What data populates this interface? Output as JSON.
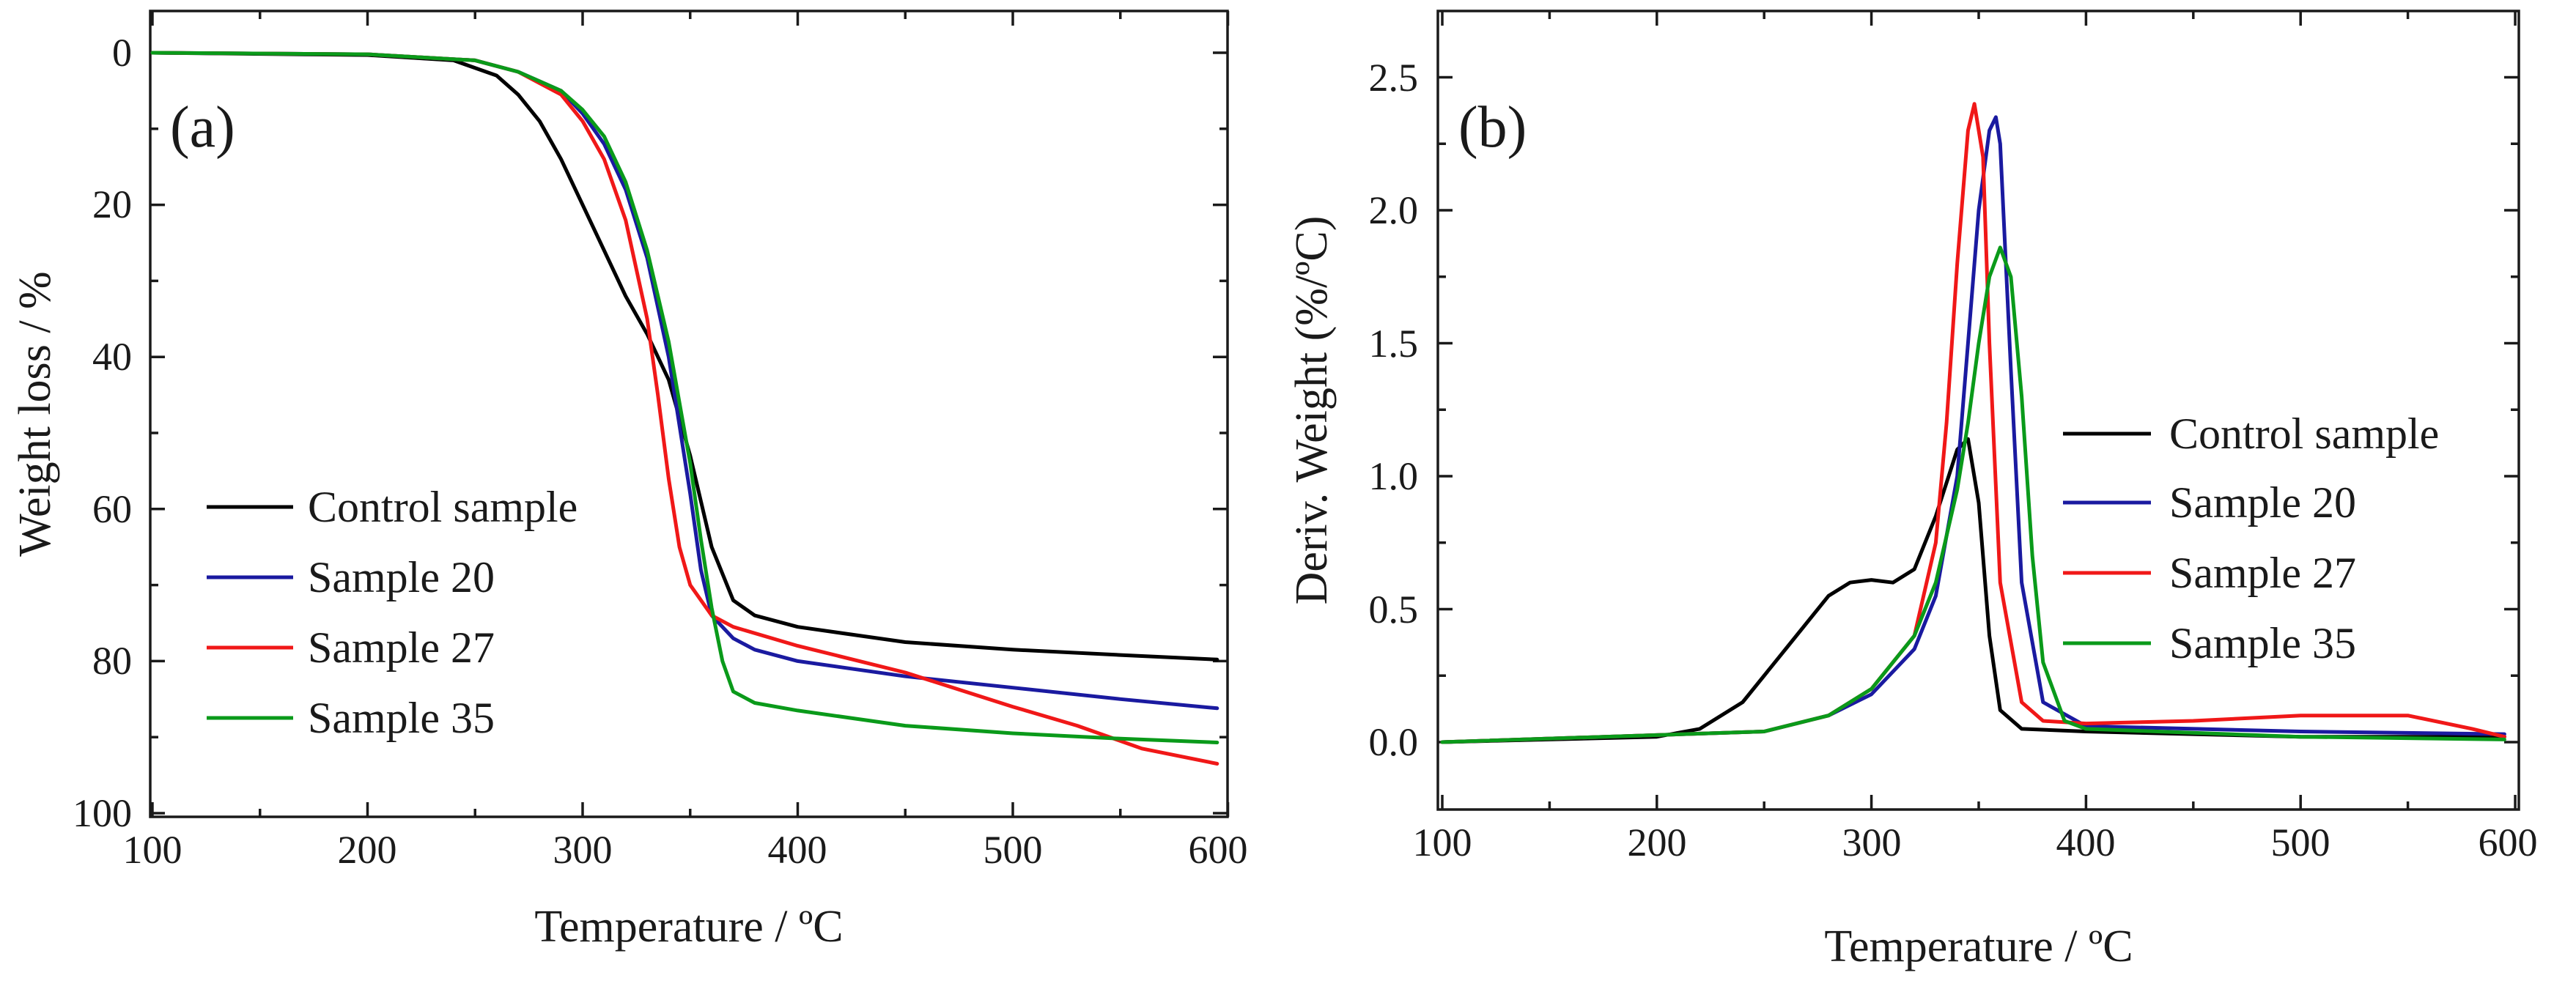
{
  "colors": {
    "control": "#000000",
    "sample20": "#1a1aa0",
    "sample27": "#f01818",
    "sample35": "#0a9a1a"
  },
  "chart_data": [
    {
      "panel_label": "(a)",
      "type": "line",
      "xlabel": "Temperature / ºC",
      "ylabel": "Weight loss / %",
      "xlim": [
        100,
        600
      ],
      "ylim": [
        0,
        100
      ],
      "y_inverted": true,
      "x_ticks": [
        "100",
        "200",
        "300",
        "400",
        "500",
        "600"
      ],
      "y_ticks": [
        "0",
        "20",
        "40",
        "60",
        "80",
        "100"
      ],
      "legend_position": "center-left",
      "series": [
        {
          "key": "control",
          "name": "Control sample",
          "x": [
            100,
            200,
            240,
            260,
            270,
            280,
            290,
            300,
            310,
            320,
            330,
            340,
            350,
            360,
            370,
            380,
            400,
            450,
            500,
            550,
            595
          ],
          "y": [
            0,
            0.3,
            1,
            3,
            5.5,
            9,
            14,
            20,
            26,
            32,
            37,
            43,
            53,
            65,
            72,
            74,
            75.5,
            77.5,
            78.5,
            79.2,
            79.8
          ]
        },
        {
          "key": "sample20",
          "name": "Sample 20",
          "x": [
            100,
            200,
            250,
            270,
            290,
            300,
            310,
            320,
            330,
            340,
            350,
            355,
            360,
            370,
            380,
            400,
            450,
            500,
            550,
            595
          ],
          "y": [
            0,
            0.2,
            1,
            2.5,
            5,
            8,
            12,
            18,
            27,
            40,
            58,
            68,
            74,
            77,
            78.5,
            80,
            82,
            83.5,
            85,
            86.2
          ]
        },
        {
          "key": "sample27",
          "name": "Sample 27",
          "x": [
            100,
            200,
            250,
            270,
            290,
            300,
            310,
            320,
            330,
            335,
            340,
            345,
            350,
            360,
            370,
            400,
            450,
            500,
            530,
            560,
            595
          ],
          "y": [
            0,
            0.2,
            1,
            2.5,
            5.5,
            9,
            14,
            22,
            35,
            45,
            56,
            65,
            70,
            74,
            75.5,
            78,
            81.5,
            86,
            88.5,
            91.5,
            93.5
          ]
        },
        {
          "key": "sample35",
          "name": "Sample 35",
          "x": [
            100,
            200,
            250,
            270,
            290,
            300,
            310,
            320,
            330,
            340,
            350,
            355,
            360,
            365,
            370,
            380,
            400,
            450,
            500,
            550,
            595
          ],
          "y": [
            0,
            0.2,
            1,
            2.5,
            5,
            7.5,
            11,
            17,
            26,
            38,
            54,
            64,
            73,
            80,
            84,
            85.5,
            86.5,
            88.5,
            89.5,
            90.2,
            90.7
          ]
        }
      ],
      "legend": [
        "Control sample",
        "Sample 20",
        "Sample 27",
        "Sample 35"
      ]
    },
    {
      "panel_label": "(b)",
      "type": "line",
      "xlabel": "Temperature / ºC",
      "ylabel": "Deriv. Weight (%/ºC)",
      "xlim": [
        100,
        600
      ],
      "ylim": [
        -0.25,
        2.75
      ],
      "x_ticks": [
        "100",
        "200",
        "300",
        "400",
        "500",
        "600"
      ],
      "y_ticks": [
        "0.0",
        "0.5",
        "1.0",
        "1.5",
        "2.0",
        "2.5"
      ],
      "legend_position": "center-right",
      "series": [
        {
          "key": "control",
          "name": "Control sample",
          "x": [
            100,
            200,
            220,
            240,
            260,
            280,
            290,
            300,
            310,
            320,
            330,
            340,
            345,
            350,
            355,
            360,
            370,
            400,
            500,
            595
          ],
          "y": [
            0,
            0.02,
            0.05,
            0.15,
            0.35,
            0.55,
            0.6,
            0.61,
            0.6,
            0.65,
            0.85,
            1.1,
            1.14,
            0.9,
            0.4,
            0.12,
            0.05,
            0.04,
            0.02,
            0.02
          ]
        },
        {
          "key": "sample20",
          "name": "Sample 20",
          "x": [
            100,
            250,
            280,
            300,
            320,
            330,
            340,
            345,
            350,
            355,
            358,
            360,
            365,
            370,
            380,
            400,
            500,
            595
          ],
          "y": [
            0,
            0.04,
            0.1,
            0.18,
            0.35,
            0.55,
            1.0,
            1.5,
            2.0,
            2.3,
            2.35,
            2.25,
            1.4,
            0.6,
            0.15,
            0.06,
            0.04,
            0.03
          ]
        },
        {
          "key": "sample27",
          "name": "Sample 27",
          "x": [
            100,
            250,
            280,
            300,
            320,
            330,
            335,
            340,
            345,
            348,
            352,
            355,
            360,
            370,
            380,
            400,
            450,
            500,
            550,
            580,
            595
          ],
          "y": [
            0,
            0.04,
            0.1,
            0.2,
            0.4,
            0.75,
            1.2,
            1.8,
            2.3,
            2.4,
            2.2,
            1.5,
            0.6,
            0.15,
            0.08,
            0.07,
            0.08,
            0.1,
            0.1,
            0.05,
            0.02
          ]
        },
        {
          "key": "sample35",
          "name": "Sample 35",
          "x": [
            100,
            250,
            280,
            300,
            320,
            330,
            340,
            345,
            350,
            355,
            360,
            365,
            370,
            375,
            380,
            390,
            400,
            500,
            595
          ],
          "y": [
            0,
            0.04,
            0.1,
            0.2,
            0.4,
            0.6,
            0.95,
            1.2,
            1.5,
            1.75,
            1.86,
            1.75,
            1.3,
            0.7,
            0.3,
            0.08,
            0.05,
            0.02,
            0.01
          ]
        }
      ],
      "legend": [
        "Control sample",
        "Sample 20",
        "Sample 27",
        "Sample 35"
      ]
    }
  ]
}
